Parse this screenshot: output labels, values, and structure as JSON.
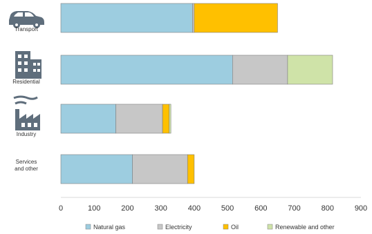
{
  "chart_data": {
    "type": "bar",
    "orientation": "horizontal",
    "stacked": true,
    "categories": [
      "Transport",
      "Residential",
      "Industry",
      "Services and other"
    ],
    "category_icons": [
      "car-icon",
      "building-icon",
      "factory-icon",
      ""
    ],
    "series": [
      {
        "name": "Natural gas",
        "color": "#9dcde0",
        "values": [
          395,
          515,
          165,
          215
        ]
      },
      {
        "name": "Electricity",
        "color": "#c7c7c7",
        "values": [
          5,
          165,
          140,
          165
        ]
      },
      {
        "name": "Oil",
        "color": "#ffc000",
        "values": [
          250,
          0,
          20,
          20
        ]
      },
      {
        "name": "Renewable and other",
        "color": "#cfe3a8",
        "values": [
          0,
          135,
          5,
          0
        ]
      }
    ],
    "xlim": [
      0,
      900
    ],
    "xticks": [
      0,
      100,
      200,
      300,
      400,
      500,
      600,
      700,
      800,
      900
    ],
    "grid": false,
    "legend_position": "bottom",
    "title": "",
    "xlabel": "",
    "ylabel": ""
  }
}
